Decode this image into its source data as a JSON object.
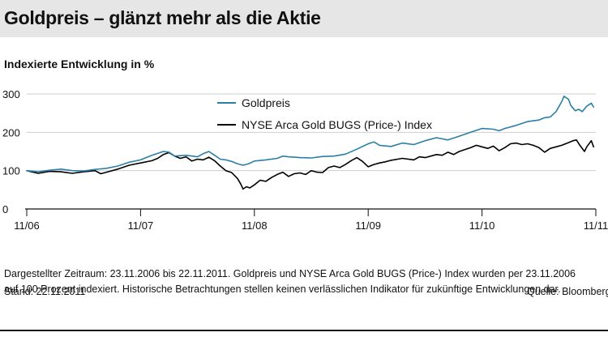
{
  "header": {
    "title": "Goldpreis – glänzt mehr als die Aktie",
    "subtitle": "Indexierte Entwicklung in %"
  },
  "footer": {
    "footnote_line1": "Dargestellter Zeitraum: 23.11.2006 bis 22.11.2011. Goldpreis und NYSE Arca Gold BUGS (Price-) Index wurden per 23.11.2006",
    "footnote_line2": "auf 100 Prozent indexiert. Historische Betrachtungen stellen keinen verlässlichen Indikator für zukünftige Entwicklungen dar.",
    "stand": "Stand: 22.11.2011",
    "source": "Quelle: Bloomberg"
  },
  "colors": {
    "gold": "#2a7fa6",
    "bugs": "#000000",
    "grid": "#cfcfcf",
    "header_bg": "#e6e6e6"
  },
  "chart_data": {
    "type": "line",
    "title": "Goldpreis – glänzt mehr als die Aktie",
    "subtitle": "Indexierte Entwicklung in %",
    "xlabel": "",
    "ylabel": "",
    "ylim": [
      0,
      300
    ],
    "yticks": [
      0,
      100,
      200,
      300
    ],
    "xlim": [
      2006.9,
      2011.9
    ],
    "xticks": [
      {
        "value": 2006.9,
        "label": "11/06"
      },
      {
        "value": 2007.9,
        "label": "11/07"
      },
      {
        "value": 2008.9,
        "label": "11/08"
      },
      {
        "value": 2009.9,
        "label": "11/09"
      },
      {
        "value": 2010.9,
        "label": "11/10"
      },
      {
        "value": 2011.9,
        "label": "11/11"
      }
    ],
    "grid": "horizontal",
    "legend_position": "top-center",
    "series": [
      {
        "name": "Goldpreis",
        "color": "#2a7fa6",
        "points": [
          [
            2006.9,
            100
          ],
          [
            2007.0,
            97
          ],
          [
            2007.1,
            101
          ],
          [
            2007.2,
            104
          ],
          [
            2007.3,
            100
          ],
          [
            2007.4,
            99
          ],
          [
            2007.5,
            103
          ],
          [
            2007.6,
            106
          ],
          [
            2007.7,
            112
          ],
          [
            2007.8,
            122
          ],
          [
            2007.9,
            128
          ],
          [
            2008.0,
            140
          ],
          [
            2008.1,
            150
          ],
          [
            2008.15,
            148
          ],
          [
            2008.2,
            138
          ],
          [
            2008.3,
            140
          ],
          [
            2008.4,
            136
          ],
          [
            2008.45,
            144
          ],
          [
            2008.5,
            150
          ],
          [
            2008.55,
            140
          ],
          [
            2008.6,
            130
          ],
          [
            2008.65,
            128
          ],
          [
            2008.7,
            124
          ],
          [
            2008.75,
            118
          ],
          [
            2008.8,
            114
          ],
          [
            2008.85,
            118
          ],
          [
            2008.9,
            125
          ],
          [
            2009.0,
            128
          ],
          [
            2009.1,
            132
          ],
          [
            2009.15,
            138
          ],
          [
            2009.2,
            136
          ],
          [
            2009.3,
            134
          ],
          [
            2009.4,
            133
          ],
          [
            2009.5,
            137
          ],
          [
            2009.6,
            138
          ],
          [
            2009.7,
            143
          ],
          [
            2009.8,
            156
          ],
          [
            2009.9,
            170
          ],
          [
            2009.95,
            175
          ],
          [
            2010.0,
            166
          ],
          [
            2010.1,
            163
          ],
          [
            2010.2,
            172
          ],
          [
            2010.3,
            168
          ],
          [
            2010.4,
            178
          ],
          [
            2010.5,
            186
          ],
          [
            2010.55,
            183
          ],
          [
            2010.6,
            180
          ],
          [
            2010.7,
            190
          ],
          [
            2010.8,
            200
          ],
          [
            2010.9,
            210
          ],
          [
            2011.0,
            208
          ],
          [
            2011.05,
            204
          ],
          [
            2011.1,
            210
          ],
          [
            2011.2,
            218
          ],
          [
            2011.3,
            228
          ],
          [
            2011.4,
            232
          ],
          [
            2011.45,
            238
          ],
          [
            2011.5,
            240
          ],
          [
            2011.55,
            254
          ],
          [
            2011.6,
            280
          ],
          [
            2011.62,
            294
          ],
          [
            2011.66,
            286
          ],
          [
            2011.68,
            270
          ],
          [
            2011.72,
            256
          ],
          [
            2011.75,
            260
          ],
          [
            2011.78,
            254
          ],
          [
            2011.82,
            268
          ],
          [
            2011.86,
            276
          ],
          [
            2011.88,
            266
          ]
        ]
      },
      {
        "name": "NYSE Arca Gold BUGS (Price-) Index",
        "color": "#000000",
        "points": [
          [
            2006.9,
            100
          ],
          [
            2007.0,
            93
          ],
          [
            2007.1,
            98
          ],
          [
            2007.2,
            97
          ],
          [
            2007.3,
            93
          ],
          [
            2007.4,
            97
          ],
          [
            2007.5,
            100
          ],
          [
            2007.55,
            92
          ],
          [
            2007.6,
            96
          ],
          [
            2007.7,
            104
          ],
          [
            2007.8,
            114
          ],
          [
            2007.9,
            120
          ],
          [
            2008.0,
            126
          ],
          [
            2008.05,
            132
          ],
          [
            2008.1,
            142
          ],
          [
            2008.15,
            147
          ],
          [
            2008.2,
            138
          ],
          [
            2008.25,
            132
          ],
          [
            2008.3,
            136
          ],
          [
            2008.35,
            125
          ],
          [
            2008.4,
            130
          ],
          [
            2008.45,
            128
          ],
          [
            2008.5,
            135
          ],
          [
            2008.55,
            126
          ],
          [
            2008.6,
            112
          ],
          [
            2008.65,
            100
          ],
          [
            2008.7,
            95
          ],
          [
            2008.75,
            80
          ],
          [
            2008.78,
            65
          ],
          [
            2008.8,
            52
          ],
          [
            2008.83,
            58
          ],
          [
            2008.86,
            55
          ],
          [
            2008.9,
            63
          ],
          [
            2008.95,
            75
          ],
          [
            2009.0,
            72
          ],
          [
            2009.05,
            82
          ],
          [
            2009.1,
            90
          ],
          [
            2009.15,
            96
          ],
          [
            2009.2,
            85
          ],
          [
            2009.25,
            92
          ],
          [
            2009.3,
            94
          ],
          [
            2009.35,
            90
          ],
          [
            2009.4,
            100
          ],
          [
            2009.45,
            96
          ],
          [
            2009.5,
            95
          ],
          [
            2009.55,
            108
          ],
          [
            2009.6,
            112
          ],
          [
            2009.65,
            108
          ],
          [
            2009.7,
            116
          ],
          [
            2009.75,
            126
          ],
          [
            2009.8,
            134
          ],
          [
            2009.85,
            124
          ],
          [
            2009.9,
            110
          ],
          [
            2009.95,
            116
          ],
          [
            2010.0,
            120
          ],
          [
            2010.05,
            123
          ],
          [
            2010.1,
            127
          ],
          [
            2010.2,
            132
          ],
          [
            2010.3,
            128
          ],
          [
            2010.35,
            136
          ],
          [
            2010.4,
            134
          ],
          [
            2010.5,
            142
          ],
          [
            2010.55,
            140
          ],
          [
            2010.6,
            148
          ],
          [
            2010.65,
            142
          ],
          [
            2010.7,
            150
          ],
          [
            2010.8,
            160
          ],
          [
            2010.85,
            166
          ],
          [
            2010.9,
            162
          ],
          [
            2010.95,
            158
          ],
          [
            2011.0,
            164
          ],
          [
            2011.05,
            152
          ],
          [
            2011.1,
            160
          ],
          [
            2011.15,
            170
          ],
          [
            2011.2,
            172
          ],
          [
            2011.25,
            168
          ],
          [
            2011.3,
            170
          ],
          [
            2011.35,
            166
          ],
          [
            2011.4,
            160
          ],
          [
            2011.45,
            148
          ],
          [
            2011.5,
            158
          ],
          [
            2011.55,
            162
          ],
          [
            2011.6,
            166
          ],
          [
            2011.65,
            172
          ],
          [
            2011.7,
            178
          ],
          [
            2011.73,
            180
          ],
          [
            2011.76,
            166
          ],
          [
            2011.8,
            150
          ],
          [
            2011.82,
            162
          ],
          [
            2011.86,
            178
          ],
          [
            2011.88,
            162
          ]
        ]
      }
    ]
  }
}
